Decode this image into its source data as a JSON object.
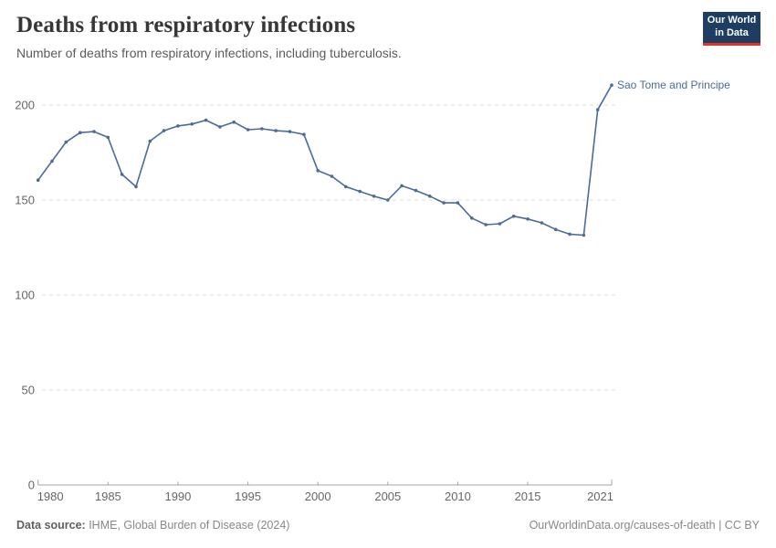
{
  "header": {
    "title": "Deaths from respiratory infections",
    "subtitle": "Number of deaths from respiratory infections, including tuberculosis."
  },
  "logo": {
    "text": "Our World\nin Data",
    "bg_color": "#1d3d63",
    "accent_color": "#e0362c"
  },
  "chart_data": {
    "type": "line",
    "title": "Deaths from respiratory infections",
    "subtitle": "Number of deaths from respiratory infections, including tuberculosis.",
    "grid": "horizontal-dashed",
    "legend_position": "end-of-line-label",
    "xlim": [
      1980,
      2021
    ],
    "ylim": [
      0,
      215
    ],
    "x_ticks": [
      1980,
      1985,
      1990,
      1995,
      2000,
      2005,
      2010,
      2015,
      2021
    ],
    "y_ticks": [
      0,
      50,
      100,
      150,
      200
    ],
    "line_color": "#4c6a9c",
    "axis_color": "#a5a5a5",
    "grid_color": "#dcdcdc",
    "tick_label_color": "#666666",
    "series": [
      {
        "name": "Sao Tome and Principe",
        "color": "#4c6a9c",
        "x": [
          1980,
          1981,
          1982,
          1983,
          1984,
          1985,
          1986,
          1987,
          1988,
          1989,
          1990,
          1991,
          1992,
          1993,
          1994,
          1995,
          1996,
          1997,
          1998,
          1999,
          2000,
          2001,
          2002,
          2003,
          2004,
          2005,
          2006,
          2007,
          2008,
          2009,
          2010,
          2011,
          2012,
          2013,
          2014,
          2015,
          2016,
          2017,
          2018,
          2019,
          2020,
          2021
        ],
        "values": [
          160.5,
          170.5,
          180.5,
          185.5,
          186,
          183,
          163.5,
          157,
          181,
          186.5,
          189,
          190,
          192,
          188.5,
          191,
          187,
          187.5,
          186.5,
          186,
          184.5,
          165.5,
          162.5,
          157,
          154.5,
          152,
          150,
          157.5,
          155,
          152,
          148.5,
          148.5,
          140.5,
          137,
          137.5,
          141.5,
          140,
          138,
          134.5,
          132,
          131.5,
          197.5,
          210.5
        ]
      }
    ]
  },
  "footer": {
    "source_label": "Data source:",
    "source_value": " IHME, Global Burden of Disease (2024)",
    "credit": "OurWorldinData.org/causes-of-death | CC BY"
  }
}
